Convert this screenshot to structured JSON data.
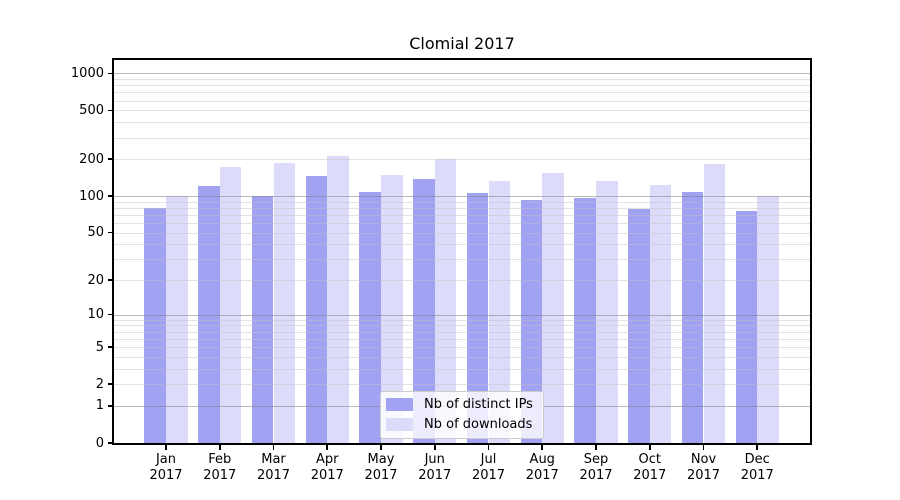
{
  "chart_data": {
    "type": "bar",
    "title": "Clomial 2017",
    "y_scale": "log1p",
    "ylim": [
      0,
      1280
    ],
    "grid": "on",
    "legend_position": "inside-bottom-center",
    "y_ticks": [
      0,
      1,
      2,
      5,
      10,
      20,
      50,
      100,
      200,
      500,
      1000
    ],
    "y_major_gridlines": [
      1,
      10,
      100,
      1000
    ],
    "y_minor_gridlines": [
      2,
      3,
      4,
      5,
      6,
      7,
      8,
      9,
      20,
      30,
      40,
      50,
      60,
      70,
      80,
      90,
      200,
      300,
      400,
      500,
      600,
      700,
      800,
      900
    ],
    "categories": [
      {
        "month": "Jan",
        "year": "2017"
      },
      {
        "month": "Feb",
        "year": "2017"
      },
      {
        "month": "Mar",
        "year": "2017"
      },
      {
        "month": "Apr",
        "year": "2017"
      },
      {
        "month": "May",
        "year": "2017"
      },
      {
        "month": "Jun",
        "year": "2017"
      },
      {
        "month": "Jul",
        "year": "2017"
      },
      {
        "month": "Aug",
        "year": "2017"
      },
      {
        "month": "Sep",
        "year": "2017"
      },
      {
        "month": "Oct",
        "year": "2017"
      },
      {
        "month": "Nov",
        "year": "2017"
      },
      {
        "month": "Dec",
        "year": "2017"
      }
    ],
    "series": [
      {
        "name": "Nb of distinct IPs",
        "color": "#a2a2f2",
        "values": [
          80,
          120,
          100,
          146,
          107,
          138,
          105,
          93,
          97,
          79,
          108,
          75
        ]
      },
      {
        "name": "Nb of downloads",
        "color": "#dcdcfa",
        "values": [
          100,
          172,
          186,
          213,
          148,
          200,
          134,
          155,
          134,
          123,
          183,
          100
        ]
      }
    ]
  },
  "colors": {
    "background": "#ffffff",
    "axis": "#000000",
    "grid_major": "rgba(130,130,130,0.55)",
    "grid_minor": "rgba(193,193,193,0.45)",
    "tick_label": "#000000"
  }
}
